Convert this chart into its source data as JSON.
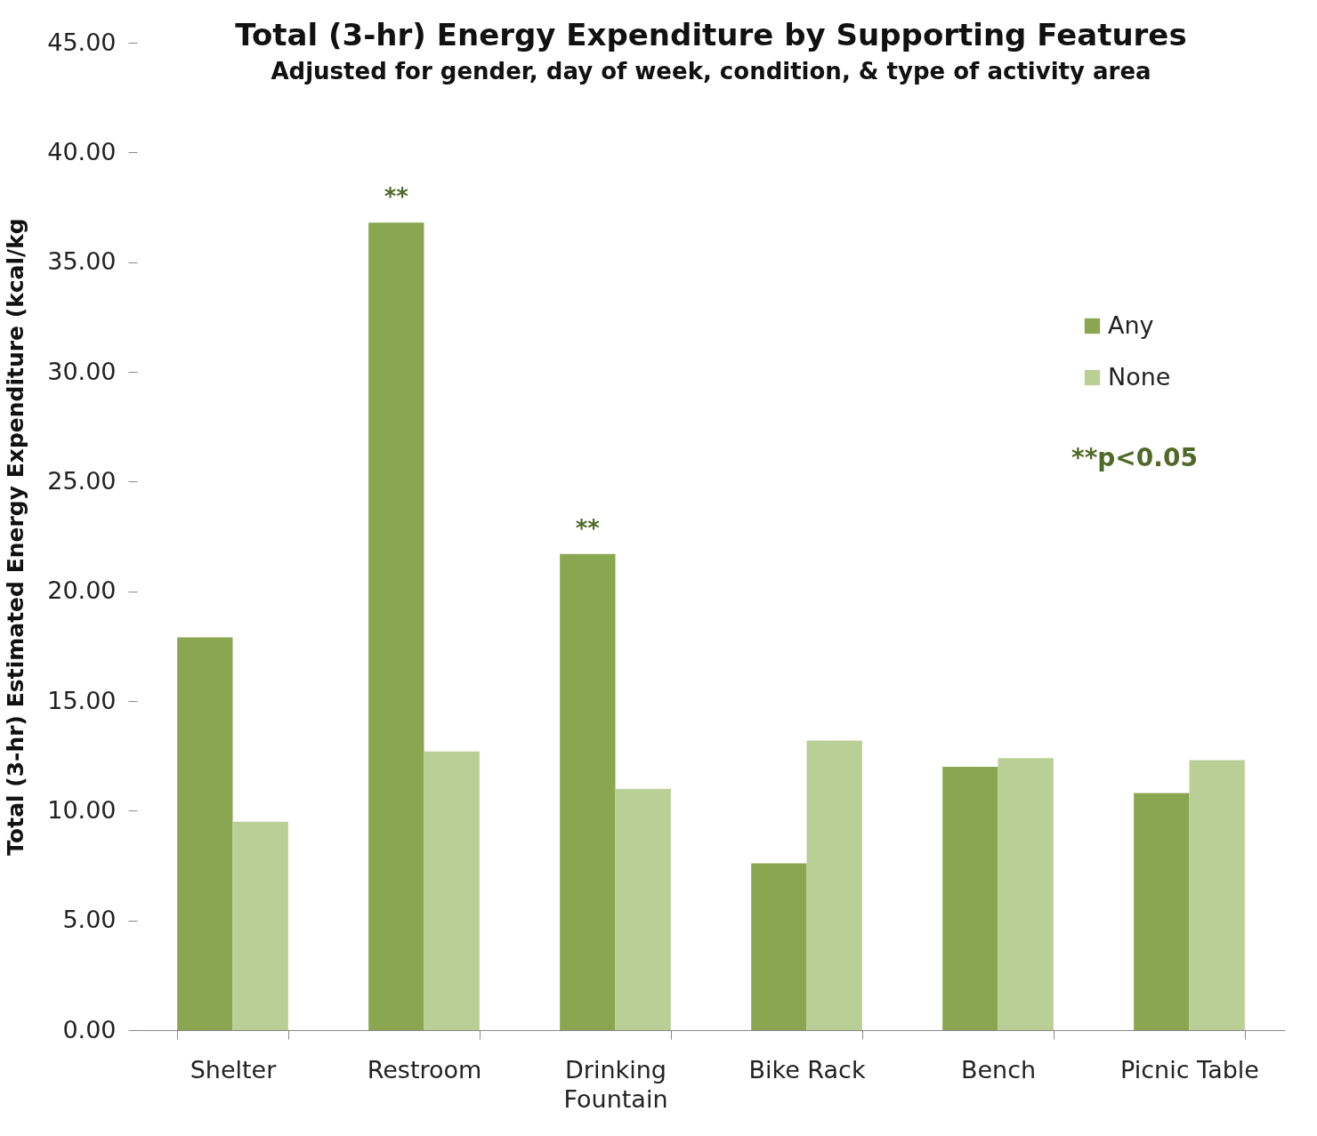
{
  "chart_data": {
    "type": "bar",
    "title": "Total (3-hr) Energy Expenditure by Supporting Features",
    "subtitle": "Adjusted for gender, day of week, condition, & type of activity area",
    "ylabel": "Total (3-hr) Estimated Energy Expenditure (kcal/kg",
    "categories": [
      "Shelter",
      "Restroom",
      "Drinking Fountain",
      "Bike Rack",
      "Bench",
      "Picnic Table"
    ],
    "series": [
      {
        "name": "Any",
        "color": "#8aa651",
        "values": [
          17.9,
          36.8,
          21.7,
          7.6,
          12.0,
          10.8
        ]
      },
      {
        "name": "None",
        "color": "#bacf95",
        "values": [
          9.5,
          12.7,
          11.0,
          13.2,
          12.4,
          12.3
        ]
      }
    ],
    "ylim": [
      0,
      45
    ],
    "yticks": [
      {
        "value": 0,
        "label": "0.00"
      },
      {
        "value": 5,
        "label": "5.00"
      },
      {
        "value": 10,
        "label": "10.00"
      },
      {
        "value": 15,
        "label": "15.00"
      },
      {
        "value": 20,
        "label": "20.00"
      },
      {
        "value": 25,
        "label": "25.00"
      },
      {
        "value": 30,
        "label": "30.00"
      },
      {
        "value": 35,
        "label": "35.00"
      },
      {
        "value": 40,
        "label": "40.00"
      },
      {
        "value": 45,
        "label": "45.00"
      }
    ],
    "grid": false,
    "legend": "top right",
    "annotations": [
      {
        "text": "**",
        "x": "Restroom",
        "y": 36.8
      },
      {
        "text": "**",
        "x": "Drinking Fountain",
        "y": 21.7
      },
      "**p<0.05"
    ]
  }
}
